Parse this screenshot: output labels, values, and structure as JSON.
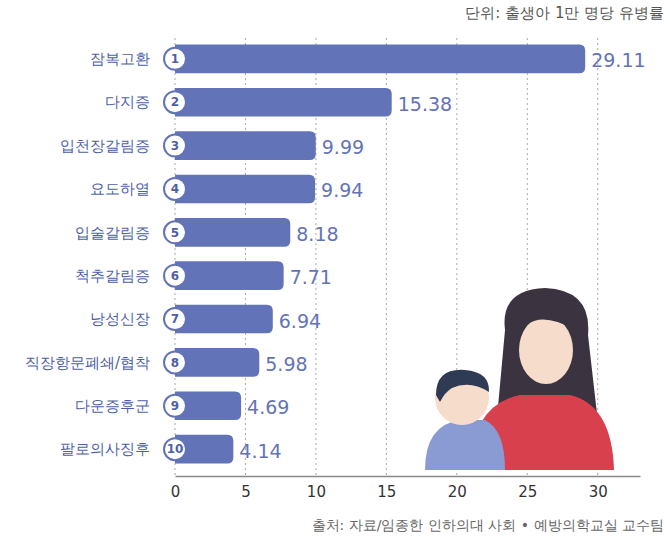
{
  "chart_data": {
    "type": "bar",
    "orientation": "horizontal",
    "subtitle": "단위: 출생아 1만 명당 유병률",
    "source": "출처: 자료/임종한 인하의대 사회 • 예방의학교실 교수팀",
    "categories": [
      "잠복고환",
      "다지증",
      "입천장갈림증",
      "요도하열",
      "입술갈림증",
      "척추갈림증",
      "낭성신장",
      "직장항문폐쇄/협착",
      "다운증후군",
      "팔로의사징후"
    ],
    "ranks": [
      1,
      2,
      3,
      4,
      5,
      6,
      7,
      8,
      9,
      10
    ],
    "values": [
      29.11,
      15.38,
      9.99,
      9.94,
      8.18,
      7.71,
      6.94,
      5.98,
      4.69,
      4.14
    ],
    "color": "#6373b8",
    "xlim": [
      0,
      33
    ],
    "xticks": [
      0,
      5,
      10,
      15,
      20,
      25,
      30
    ],
    "grid": true,
    "data_labels": true
  }
}
